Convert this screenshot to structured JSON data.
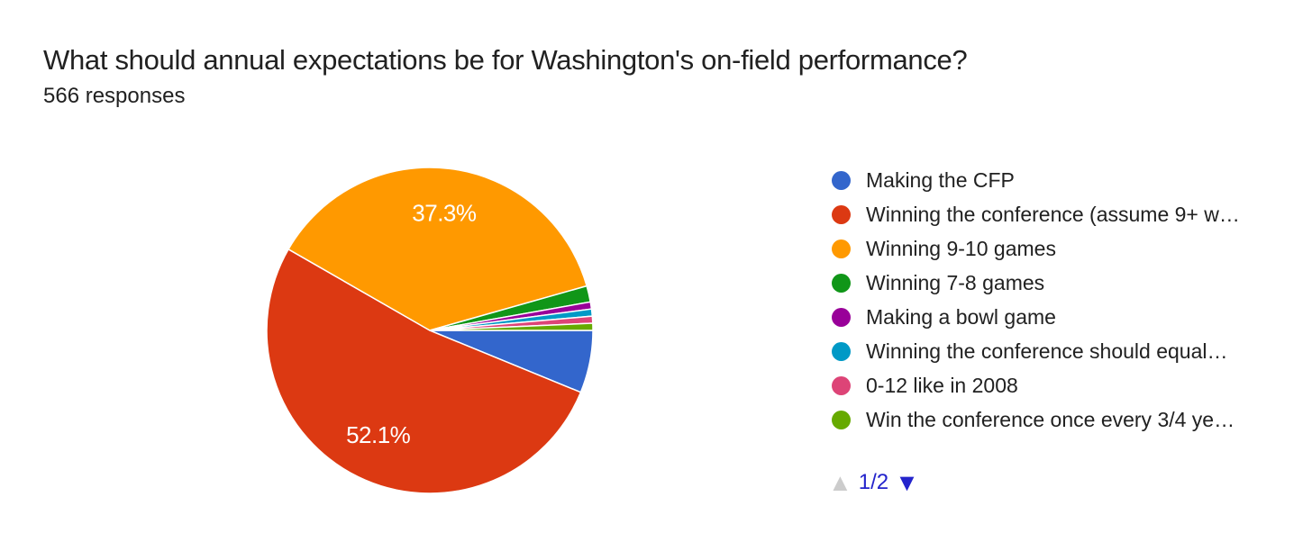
{
  "header": {
    "title": "What should annual expectations be for Washington's on-field performance?",
    "subtitle": "566 responses"
  },
  "chart_data": {
    "type": "pie",
    "title": "What should annual expectations be for Washington's on-field performance?",
    "subtitle": "566 responses",
    "total_responses": 566,
    "legend_position": "right",
    "start_angle_deg": 0,
    "direction": "clockwise",
    "slices": [
      {
        "label": "Making the CFP",
        "value_pct": 6.2,
        "color": "#3366CC",
        "data_label": ""
      },
      {
        "label": "Winning the conference (assume 9+ w…",
        "value_pct": 52.1,
        "color": "#DC3912",
        "data_label": "52.1%"
      },
      {
        "label": "Winning 9-10 games",
        "value_pct": 37.3,
        "color": "#FF9900",
        "data_label": "37.3%"
      },
      {
        "label": "Winning 7-8 games",
        "value_pct": 1.6,
        "color": "#109618",
        "data_label": ""
      },
      {
        "label": "Making a bowl game",
        "value_pct": 0.7,
        "color": "#990099",
        "data_label": ""
      },
      {
        "label": "Winning the conference should equal…",
        "value_pct": 0.7,
        "color": "#0099C6",
        "data_label": ""
      },
      {
        "label": "0-12 like in 2008",
        "value_pct": 0.7,
        "color": "#DD4477",
        "data_label": ""
      },
      {
        "label": "Win the conference once every 3/4 ye…",
        "value_pct": 0.7,
        "color": "#66AA00",
        "data_label": ""
      }
    ]
  },
  "legend_pagination": {
    "up_arrow": "▲",
    "down_arrow": "▼",
    "page_label": "1/2"
  },
  "colors": {
    "page_bg": "#FFFFFF",
    "title_text": "#212121",
    "legend_text": "#212121",
    "slice_label_text": "#FFFFFF",
    "slice_stroke": "#FFFFFF",
    "pagination_active": "#2424CC",
    "pagination_disabled": "#CCCCCC"
  }
}
